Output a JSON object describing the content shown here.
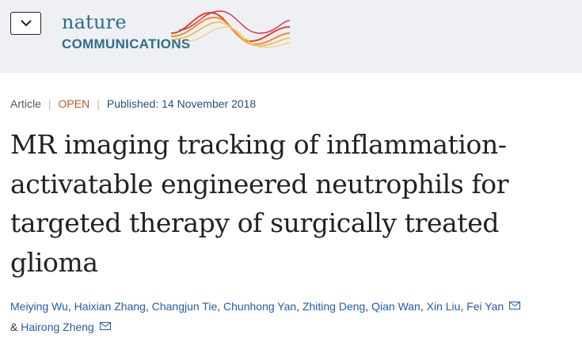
{
  "header": {
    "menu_button_icon": "chevron-down-icon",
    "logo": {
      "line1": "nature",
      "line2": "COMMUNICATIONS"
    },
    "background_color": "#eef0f4"
  },
  "meta": {
    "type": "Article",
    "access": "OPEN",
    "published": "Published: 14 November 2018",
    "open_color": "#c0552b"
  },
  "title_lines": [
    "MR imaging tracking of inflammation-",
    "activatable engineered neutrophils for",
    "targeted therapy of surgically treated",
    "glioma"
  ],
  "authors": [
    {
      "name": "Meiying Wu"
    },
    {
      "name": "Haixian Zhang"
    },
    {
      "name": "Changjun Tie"
    },
    {
      "name": "Chunhong Yan"
    },
    {
      "name": "Zhiting Deng"
    },
    {
      "name": "Qian Wan"
    },
    {
      "name": "Xin Liu"
    },
    {
      "name": "Fei Yan",
      "icon": "mail-icon"
    },
    {
      "name": "Hairong Zheng",
      "icon": "mail-icon"
    }
  ],
  "authors_joiner": "&",
  "link_color": "#1f5ea8"
}
